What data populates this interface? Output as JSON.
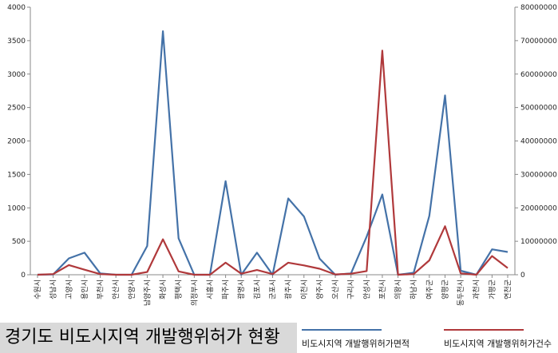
{
  "chart_data": {
    "type": "line",
    "title": "경기도 비도시지역 개발행위허가 현황",
    "categories": [
      "수원시",
      "성남시",
      "고양시",
      "용인시",
      "부천시",
      "안산시",
      "안양시",
      "남양주시",
      "화성시",
      "평택시",
      "의정부시",
      "시흥시",
      "파주시",
      "광명시",
      "김포시",
      "군포시",
      "광주시",
      "이천시",
      "양주시",
      "오산시",
      "구리시",
      "안성시",
      "포천시",
      "의왕시",
      "하남시",
      "여주군",
      "양평군",
      "동두천시",
      "과천시",
      "가평군",
      "연천군"
    ],
    "y_left": {
      "ylim": [
        0,
        4000
      ],
      "ticks": [
        0,
        500,
        1000,
        1500,
        2000,
        2500,
        3000,
        3500,
        4000
      ]
    },
    "y_right": {
      "ylim": [
        0,
        80000000
      ],
      "ticks": [
        0,
        10000000,
        20000000,
        30000000,
        40000000,
        50000000,
        60000000,
        70000000,
        80000000
      ]
    },
    "series": [
      {
        "name": "비도시지역 개발행위허가면적",
        "axis": "left",
        "color": "#4472a8",
        "values": [
          0,
          5,
          245,
          330,
          20,
          0,
          0,
          430,
          3640,
          545,
          0,
          0,
          1400,
          0,
          330,
          0,
          1140,
          870,
          240,
          0,
          20,
          570,
          1200,
          0,
          30,
          880,
          2680,
          60,
          0,
          380,
          340
        ]
      },
      {
        "name": "비도시지역 개발행위허가건수",
        "axis": "right",
        "color": "#b0393b",
        "values": [
          0,
          200000,
          2900000,
          1500000,
          200000,
          0,
          0,
          800000,
          10600000,
          1000000,
          0,
          0,
          3600000,
          300000,
          1400000,
          200000,
          3600000,
          2800000,
          1800000,
          100000,
          300000,
          1100000,
          67000000,
          0,
          200000,
          4300000,
          14500000,
          400000,
          0,
          5600000,
          2000000
        ]
      }
    ],
    "grid": false,
    "legend_position": "bottom-right"
  }
}
